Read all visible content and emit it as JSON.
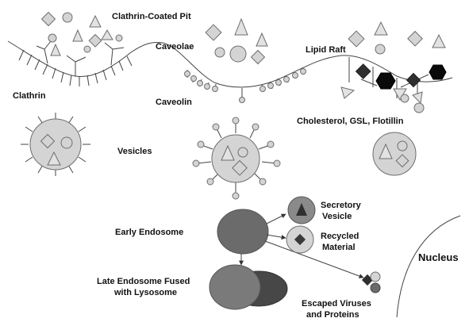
{
  "labels": {
    "clathrin_coated_pit": "Clathrin-Coated Pit",
    "caveolae": "Caveolae",
    "lipid_raft": "Lipid Raft",
    "clathrin": "Clathrin",
    "caveolin": "Caveolin",
    "cholesterol_gsl_flotillin": "Cholesterol, GSL, Flotillin",
    "vesicles": "Vesicles",
    "secretory_vesicle_line1": "Secretory",
    "secretory_vesicle_line2": "Vesicle",
    "recycled_material_line1": "Recycled",
    "recycled_material_line2": "Material",
    "early_endosome": "Early Endosome",
    "late_endosome_line1": "Late Endosome Fused",
    "late_endosome_line2": "with Lysosome",
    "nucleus": "Nucleus",
    "escaped_line1": "Escaped Viruses",
    "escaped_line2": "and Proteins"
  },
  "colors": {
    "cargo_fill": "#d4d4d4",
    "cargo_stroke": "#6e6e6e",
    "endosome": "#6b6b6b",
    "lysosome": "#474747",
    "raft_dark": "#2a2a2a",
    "raft_black": "#0a0a0a"
  }
}
